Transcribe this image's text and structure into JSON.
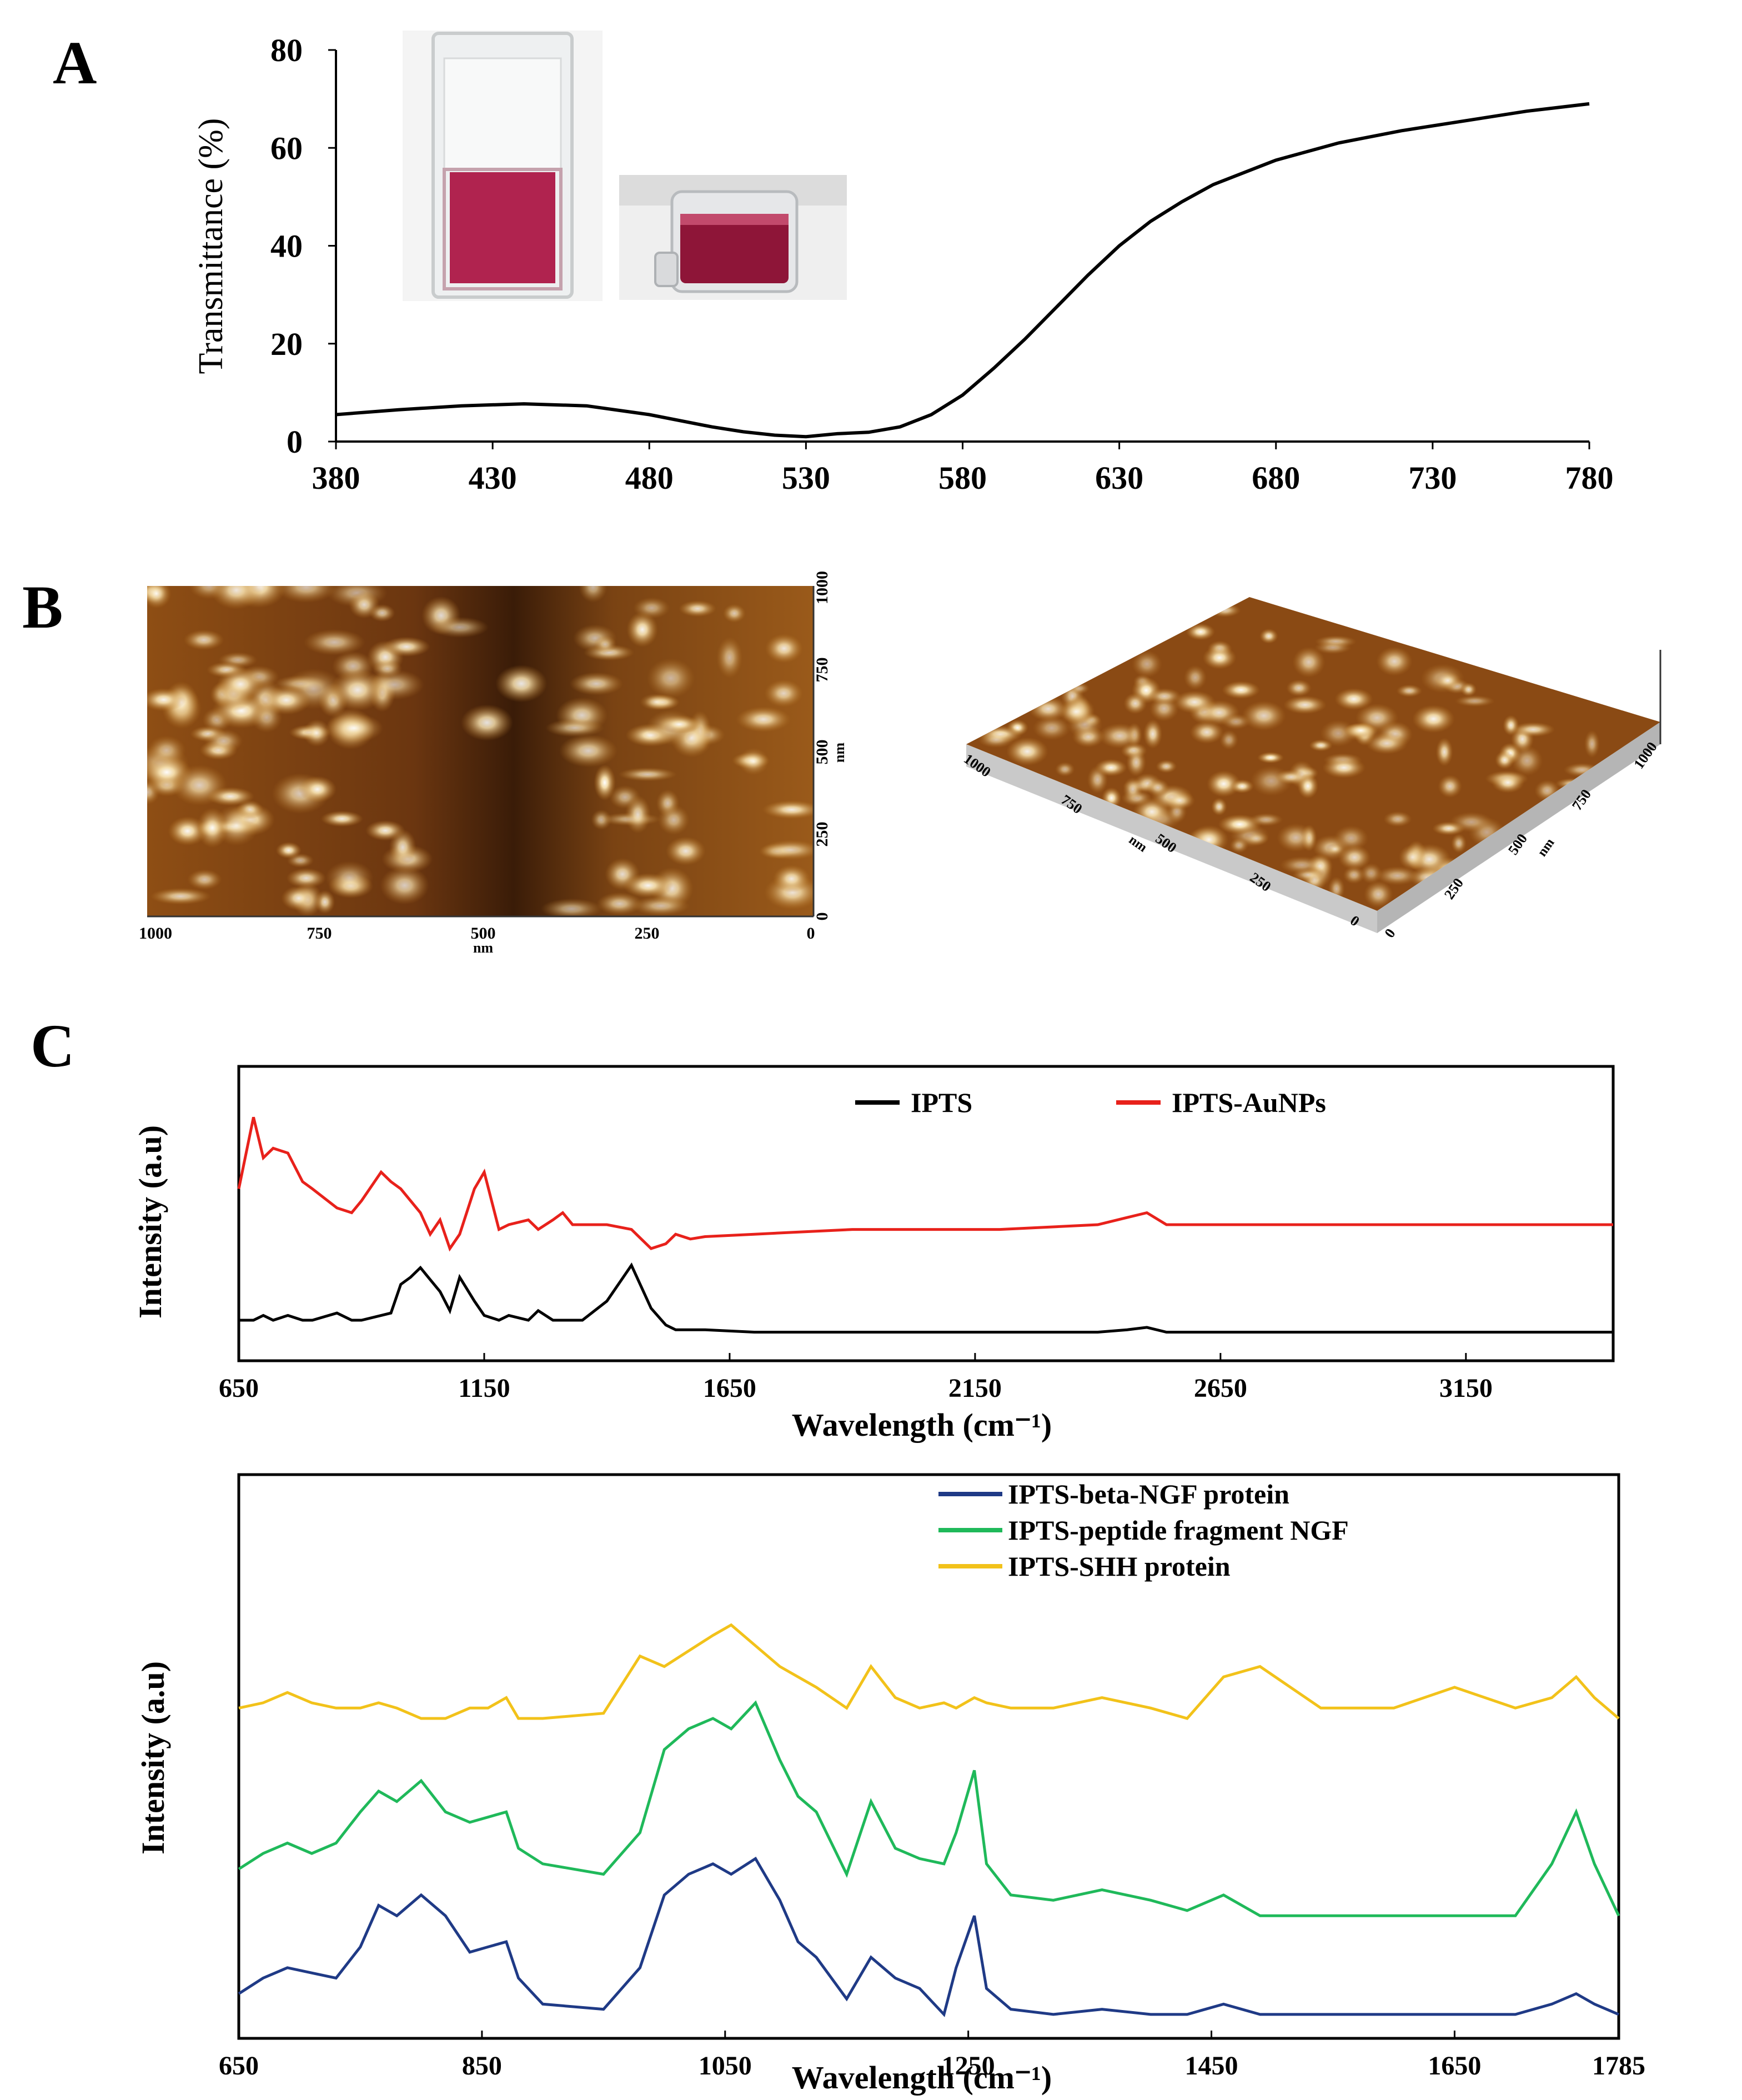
{
  "panel_labels": [
    "A",
    "B",
    "C"
  ],
  "panelA": {
    "ylabel": "Transmittance (%)",
    "xticks": [
      "380",
      "430",
      "480",
      "530",
      "580",
      "630",
      "680",
      "730",
      "780"
    ],
    "yticks": [
      "0",
      "20",
      "40",
      "60",
      "80"
    ]
  },
  "panelB": {
    "ticks_2d_x": [
      "1000",
      "750",
      "500",
      "250",
      "0"
    ],
    "ticks_2d_y": [
      "0",
      "250",
      "500",
      "750",
      "1000"
    ],
    "unit": "nm",
    "ticks_3d_left": [
      "1000",
      "750",
      "500",
      "250",
      "0"
    ],
    "ticks_3d_right": [
      "0",
      "250",
      "500",
      "750",
      "1000"
    ]
  },
  "panelC1": {
    "ylabel": "Intensity (a.u)",
    "xlabel": "Wavelength (cm⁻¹)",
    "xticks": [
      "650",
      "1150",
      "1650",
      "2150",
      "2650",
      "3150"
    ],
    "legend": [
      "IPTS",
      "IPTS-AuNPs"
    ]
  },
  "panelC2": {
    "ylabel": "Intensity (a.u)",
    "xlabel": "Wavelength (cm⁻¹)",
    "xticks": [
      "650",
      "850",
      "1050",
      "1250",
      "1450",
      "1650",
      "1785"
    ],
    "legend": [
      "IPTS-beta-NGF protein",
      "IPTS-peptide fragment NGF",
      "IPTS-SHH protein"
    ]
  },
  "colors": {
    "IPTS": "#000000",
    "IPTS-AuNPs": "#e8211b",
    "IPTS-beta-NGF protein": "#1f3a86",
    "IPTS-peptide fragment NGF": "#1fb95a",
    "IPTS-SHH protein": "#f2c21a",
    "afm_dark": "#3a1c08",
    "afm_light": "#f7e3b4"
  },
  "chart_data": [
    {
      "type": "line",
      "panel": "A",
      "ylabel": "Transmittance (%)",
      "xlim": [
        380,
        780
      ],
      "ylim": [
        0,
        80
      ],
      "x": [
        380,
        400,
        420,
        440,
        460,
        480,
        500,
        510,
        520,
        530,
        540,
        550,
        560,
        570,
        580,
        590,
        600,
        610,
        620,
        630,
        640,
        650,
        660,
        670,
        680,
        700,
        720,
        740,
        760,
        780
      ],
      "series": [
        {
          "values": [
            5.5,
            6.5,
            7.3,
            7.7,
            7.3,
            5.5,
            3.0,
            2.0,
            1.3,
            1.0,
            1.6,
            1.9,
            3.0,
            5.5,
            9.5,
            15.0,
            21.0,
            27.5,
            34.0,
            40.0,
            45.0,
            49.0,
            52.5,
            55.0,
            57.5,
            61.0,
            63.5,
            65.5,
            67.5,
            69.0
          ]
        }
      ]
    },
    {
      "type": "line",
      "panel": "C-top",
      "xlabel": "Wavelength (cm⁻¹)",
      "ylabel": "Intensity (a.u)",
      "xlim": [
        650,
        3450
      ],
      "ylim": [
        0,
        100
      ],
      "x": [
        650,
        680,
        700,
        720,
        750,
        780,
        800,
        850,
        880,
        900,
        940,
        960,
        980,
        1000,
        1020,
        1040,
        1060,
        1080,
        1100,
        1130,
        1150,
        1180,
        1200,
        1240,
        1260,
        1290,
        1310,
        1330,
        1350,
        1400,
        1450,
        1490,
        1520,
        1540,
        1570,
        1600,
        1700,
        1800,
        1900,
        2000,
        2200,
        2400,
        2460,
        2500,
        2540,
        2600,
        2800,
        3000,
        3200,
        3450
      ],
      "series": [
        {
          "name": "IPTS",
          "values": [
            10,
            10,
            12,
            10,
            12,
            10,
            10,
            13,
            10,
            10,
            12,
            13,
            25,
            28,
            32,
            27,
            22,
            14,
            28,
            18,
            12,
            10,
            12,
            10,
            14,
            10,
            10,
            10,
            10,
            18,
            33,
            15,
            8,
            6,
            6,
            6,
            5,
            5,
            5,
            5,
            5,
            5,
            6,
            7,
            5,
            5,
            5,
            5,
            5,
            5
          ]
        },
        {
          "name": "IPTS-AuNPs",
          "values": [
            65,
            95,
            78,
            82,
            80,
            68,
            65,
            57,
            55,
            60,
            72,
            68,
            65,
            60,
            55,
            46,
            52,
            40,
            46,
            65,
            72,
            48,
            50,
            52,
            48,
            52,
            55,
            50,
            50,
            50,
            48,
            40,
            42,
            46,
            44,
            45,
            46,
            47,
            48,
            48,
            48,
            50,
            53,
            55,
            50,
            50,
            50,
            50,
            50,
            50
          ]
        }
      ]
    },
    {
      "type": "line",
      "panel": "C-bottom",
      "xlabel": "Wavelength (cm⁻¹)",
      "ylabel": "Intensity (a.u)",
      "xlim": [
        650,
        1785
      ],
      "ylim": [
        0,
        100
      ],
      "x": [
        650,
        670,
        690,
        710,
        730,
        750,
        765,
        780,
        800,
        820,
        840,
        855,
        870,
        880,
        900,
        950,
        980,
        1000,
        1020,
        1040,
        1055,
        1075,
        1095,
        1110,
        1125,
        1150,
        1170,
        1190,
        1210,
        1230,
        1240,
        1255,
        1265,
        1285,
        1320,
        1360,
        1400,
        1430,
        1460,
        1490,
        1540,
        1600,
        1650,
        1700,
        1730,
        1750,
        1765,
        1785
      ],
      "series": [
        {
          "name": "IPTS-beta-NGF protein",
          "values": [
            7,
            10,
            12,
            11,
            10,
            16,
            24,
            22,
            26,
            22,
            15,
            16,
            17,
            10,
            5,
            4,
            12,
            26,
            30,
            32,
            30,
            33,
            25,
            17,
            14,
            6,
            14,
            10,
            8,
            3,
            12,
            22,
            8,
            4,
            3,
            4,
            3,
            3,
            5,
            3,
            3,
            3,
            3,
            3,
            5,
            7,
            5,
            3
          ]
        },
        {
          "name": "IPTS-peptide fragment NGF",
          "values": [
            31,
            34,
            36,
            34,
            36,
            42,
            46,
            44,
            48,
            42,
            40,
            41,
            42,
            35,
            32,
            30,
            38,
            54,
            58,
            60,
            58,
            63,
            52,
            45,
            42,
            30,
            44,
            35,
            33,
            32,
            38,
            50,
            32,
            26,
            25,
            27,
            25,
            23,
            26,
            22,
            22,
            22,
            22,
            22,
            32,
            42,
            32,
            22
          ]
        },
        {
          "name": "IPTS-SHH protein",
          "values": [
            62,
            63,
            65,
            63,
            62,
            62,
            63,
            62,
            60,
            60,
            62,
            62,
            64,
            60,
            60,
            61,
            72,
            70,
            73,
            76,
            78,
            74,
            70,
            68,
            66,
            62,
            70,
            64,
            62,
            63,
            62,
            64,
            63,
            62,
            62,
            64,
            62,
            60,
            68,
            70,
            62,
            62,
            66,
            62,
            64,
            68,
            64,
            60
          ]
        }
      ]
    }
  ]
}
